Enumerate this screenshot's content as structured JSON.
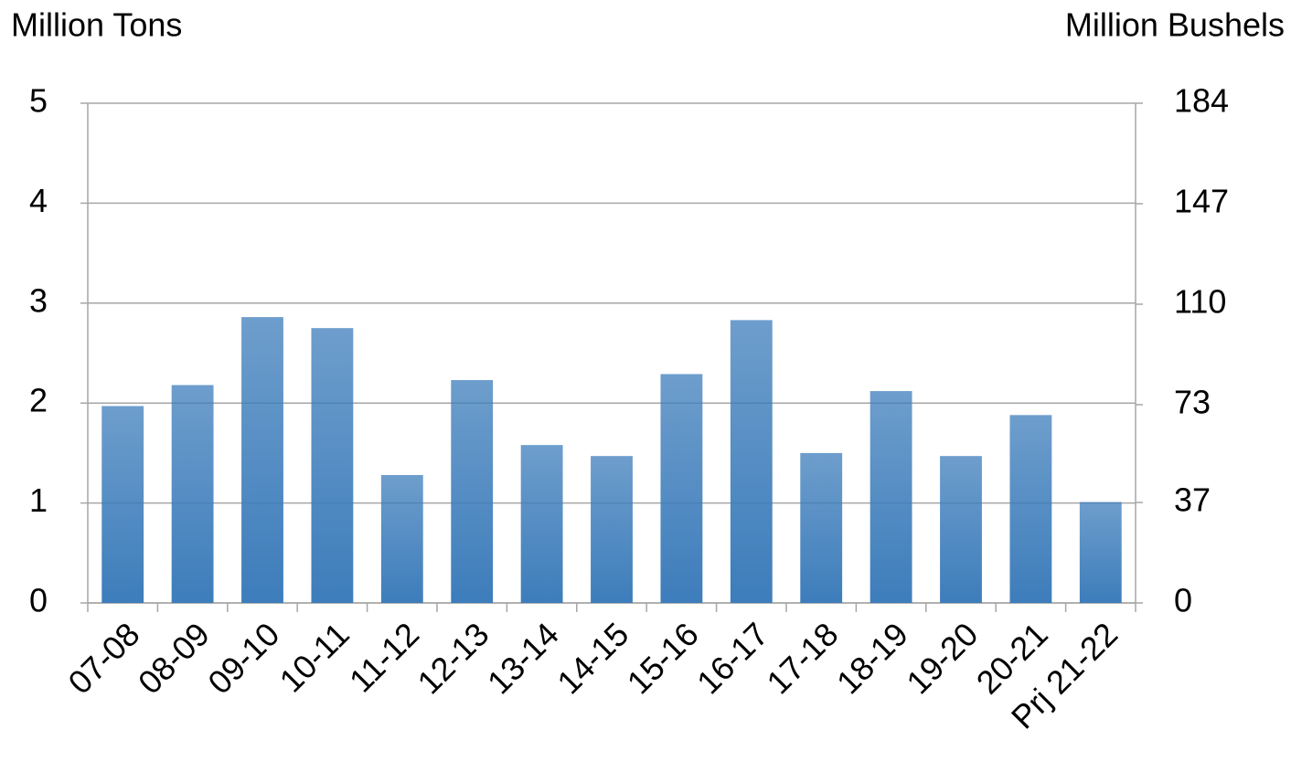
{
  "chart_data": {
    "type": "bar",
    "y_label": "Million Tons",
    "y2_label": "Million Bushels",
    "categories": [
      "07-08",
      "08-09",
      "09-10",
      "10-11",
      "11-12",
      "12-13",
      "13-14",
      "14-15",
      "15-16",
      "16-17",
      "17-18",
      "18-19",
      "19-20",
      "20-21",
      "Prj 21-22"
    ],
    "values": [
      1.97,
      2.18,
      2.86,
      2.75,
      1.28,
      2.23,
      1.58,
      1.47,
      2.29,
      2.83,
      1.5,
      2.12,
      1.47,
      1.88,
      1.01
    ],
    "color": "#3d7dbb",
    "ylim": [
      0,
      5
    ],
    "yticks": [
      0,
      1,
      2,
      3,
      4,
      5
    ],
    "y2lim": [
      0,
      184
    ],
    "y2ticks": [
      0,
      37,
      73,
      110,
      147,
      184
    ],
    "grid": true
  }
}
